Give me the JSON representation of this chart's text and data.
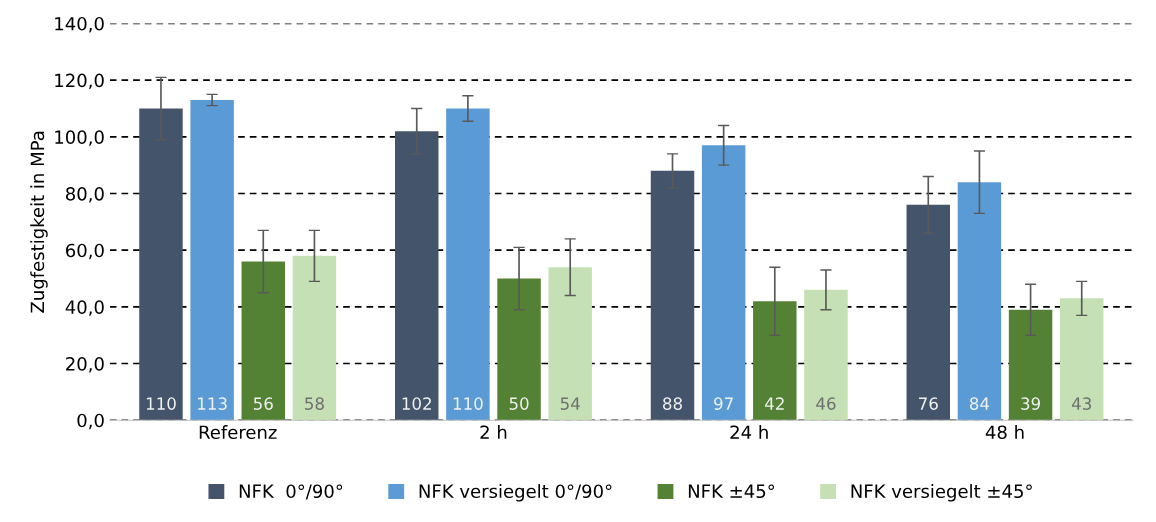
{
  "chart_data": {
    "type": "bar",
    "ylabel": "Zugfestigkeit in MPa",
    "categories": [
      "Referenz",
      "2 h",
      "24 h",
      "48 h"
    ],
    "series": [
      {
        "name": "NFK  0°/90°",
        "color": "#44546a",
        "values": [
          110,
          102,
          88,
          76
        ],
        "errors": [
          11,
          8,
          6,
          10
        ]
      },
      {
        "name": "NFK versiegelt 0°/90°",
        "color": "#5b9bd5",
        "values": [
          113,
          110,
          97,
          84
        ],
        "errors": [
          2,
          4.5,
          7,
          11
        ]
      },
      {
        "name": "NFK ±45°",
        "color": "#548235",
        "values": [
          56,
          50,
          42,
          39
        ],
        "errors": [
          11,
          11,
          12,
          9
        ]
      },
      {
        "name": "NFK versiegelt ±45°",
        "color": "#c5e0b4",
        "values": [
          58,
          54,
          46,
          43
        ],
        "errors": [
          9,
          10,
          7,
          6
        ]
      }
    ],
    "ylim": [
      0,
      140
    ],
    "yticks": [
      {
        "value": 0,
        "label": "0,0"
      },
      {
        "value": 20,
        "label": "20,0"
      },
      {
        "value": 40,
        "label": "40,0"
      },
      {
        "value": 60,
        "label": "60,0"
      },
      {
        "value": 80,
        "label": "80,0"
      },
      {
        "value": 100,
        "label": "100,0"
      },
      {
        "value": 120,
        "label": "120,0"
      },
      {
        "value": 140,
        "label": "140,0"
      }
    ],
    "grid": "y",
    "legend": "bottom",
    "data_labels": true
  }
}
